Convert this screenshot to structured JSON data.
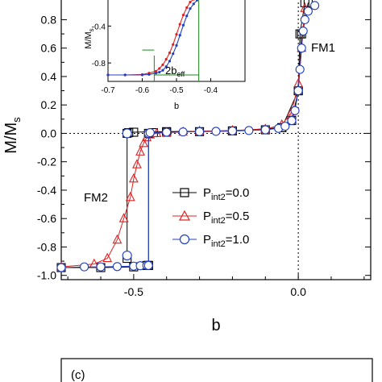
{
  "chart_data": [
    {
      "type": "line",
      "xlabel": "b",
      "ylabel_main": "M/M",
      "ylabel_sub": "s",
      "xlim": [
        -0.72,
        0.22
      ],
      "ylim": [
        -1.03,
        0.95
      ],
      "xticks": [
        -0.5,
        0.0
      ],
      "xtick_labels": [
        "-0.5",
        "0.0"
      ],
      "yticks": [
        -1.0,
        -0.8,
        -0.6,
        -0.4,
        -0.2,
        0.0,
        0.2,
        0.4,
        0.6,
        0.8
      ],
      "ytick_labels": [
        "-1.0",
        "-0.8",
        "-0.6",
        "-0.4",
        "-0.2",
        "0.0",
        "0.2",
        "0.4",
        "0.6",
        "0.8"
      ],
      "grid": false,
      "legend_position": "lower-right",
      "annotations": [
        "FM1",
        "FM2"
      ],
      "series": [
        {
          "name": "P_int2=0.0",
          "legend_main": "P",
          "legend_sub": "int2",
          "legend_value": "=0.0",
          "color": "#000000",
          "marker": "square",
          "branches": [
            {
              "x": [
                -0.72,
                -0.6,
                -0.5,
                -0.46,
                -0.455
              ],
              "y": [
                -0.945,
                -0.945,
                -0.94,
                -0.93,
                -0.93
              ]
            },
            {
              "x": [
                -0.455,
                -0.455,
                -0.44,
                -0.4,
                -0.3,
                -0.2,
                -0.1,
                -0.05,
                -0.02,
                0.0,
                0.01,
                0.03
              ],
              "y": [
                -0.93,
                0.0,
                0.005,
                0.008,
                0.012,
                0.017,
                0.025,
                0.04,
                0.09,
                0.3,
                0.7,
                0.92
              ]
            },
            {
              "x": [
                -0.52,
                -0.52,
                -0.515,
                -0.5,
                -0.4,
                -0.2,
                -0.05,
                0.0,
                0.005,
                0.02
              ],
              "y": [
                -0.88,
                0.0,
                0.005,
                0.008,
                0.012,
                0.017,
                0.04,
                0.3,
                0.7,
                0.92
              ]
            }
          ]
        },
        {
          "name": "P_int2=0.5",
          "legend_main": "P",
          "legend_sub": "int2",
          "legend_value": "=0.5",
          "color": "#e02020",
          "marker": "triangle",
          "x": [
            -0.72,
            -0.62,
            -0.58,
            -0.55,
            -0.53,
            -0.51,
            -0.5,
            -0.49,
            -0.48,
            -0.47,
            -0.46,
            -0.45,
            -0.43,
            -0.4,
            -0.35,
            -0.3,
            -0.2,
            -0.1,
            -0.05,
            -0.02,
            0.0,
            0.01,
            0.02
          ],
          "y": [
            -0.94,
            -0.92,
            -0.88,
            -0.75,
            -0.6,
            -0.45,
            -0.32,
            -0.22,
            -0.13,
            -0.07,
            -0.03,
            -0.01,
            0.0,
            0.005,
            0.01,
            0.015,
            0.02,
            0.03,
            0.06,
            0.15,
            0.35,
            0.6,
            0.88
          ]
        },
        {
          "name": "P_int2=1.0",
          "legend_main": "P",
          "legend_sub": "int2",
          "legend_value": "=1.0",
          "color": "#1f3fbf",
          "marker": "circle",
          "x": [
            -0.72,
            -0.65,
            -0.6,
            -0.55,
            -0.5,
            -0.48,
            -0.46,
            -0.455,
            -0.455,
            -0.45,
            -0.4,
            -0.35,
            -0.3,
            -0.25,
            -0.2,
            -0.15,
            -0.1,
            -0.06,
            -0.04,
            -0.02,
            -0.01,
            0.0,
            0.005,
            0.01,
            0.015,
            0.02,
            0.03,
            0.05
          ],
          "y": [
            -0.945,
            -0.94,
            -0.94,
            -0.938,
            -0.935,
            -0.932,
            -0.93,
            -0.93,
            0.0,
            0.005,
            0.008,
            0.01,
            0.012,
            0.014,
            0.017,
            0.02,
            0.025,
            0.035,
            0.05,
            0.09,
            0.16,
            0.3,
            0.45,
            0.6,
            0.72,
            0.8,
            0.86,
            0.9
          ]
        }
      ],
      "extra_points": [
        {
          "x": -0.52,
          "y": -0.86,
          "color": "#1f3fbf",
          "marker": "circle"
        },
        {
          "x": -0.52,
          "y": 0.0,
          "color": "#1f3fbf",
          "marker": "circle"
        }
      ],
      "inset": {
        "xlabel": "b",
        "ylabel_main": "M/M",
        "ylabel_sub": "s",
        "xlim": [
          -0.7,
          -0.3
        ],
        "ylim": [
          -1.0,
          -0.1
        ],
        "xticks": [
          -0.7,
          -0.6,
          -0.5,
          -0.4
        ],
        "xtick_labels": [
          "-0.7",
          "-0.6",
          "-0.5",
          "-0.4"
        ],
        "yticks": [
          -0.8,
          -0.4
        ],
        "ytick_labels": [
          "-0.8",
          "-0.4"
        ],
        "annotation_main": "2b",
        "annotation_sub": "eff",
        "annotation_color": "#1a8a1a",
        "bracket_x": [
          -0.565,
          -0.435
        ],
        "series": [
          {
            "color": "#e02020",
            "x": [
              -0.7,
              -0.65,
              -0.6,
              -0.58,
              -0.56,
              -0.55,
              -0.54,
              -0.53,
              -0.52,
              -0.51,
              -0.5,
              -0.49,
              -0.48,
              -0.47,
              -0.46,
              -0.45,
              -0.44
            ],
            "y": [
              -0.93,
              -0.93,
              -0.925,
              -0.91,
              -0.89,
              -0.86,
              -0.82,
              -0.76,
              -0.69,
              -0.6,
              -0.49,
              -0.38,
              -0.28,
              -0.2,
              -0.14,
              -0.11,
              -0.1
            ]
          },
          {
            "color": "#1f3fbf",
            "x": [
              -0.7,
              -0.65,
              -0.6,
              -0.58,
              -0.56,
              -0.55,
              -0.54,
              -0.53,
              -0.52,
              -0.51,
              -0.5,
              -0.49,
              -0.48,
              -0.47,
              -0.46,
              -0.45,
              -0.44,
              -0.43
            ],
            "y": [
              -0.93,
              -0.93,
              -0.93,
              -0.925,
              -0.91,
              -0.9,
              -0.88,
              -0.84,
              -0.78,
              -0.7,
              -0.61,
              -0.5,
              -0.39,
              -0.29,
              -0.21,
              -0.16,
              -0.12,
              -0.1
            ]
          }
        ]
      }
    },
    {
      "type": "line",
      "panel_label": "(c)"
    }
  ]
}
